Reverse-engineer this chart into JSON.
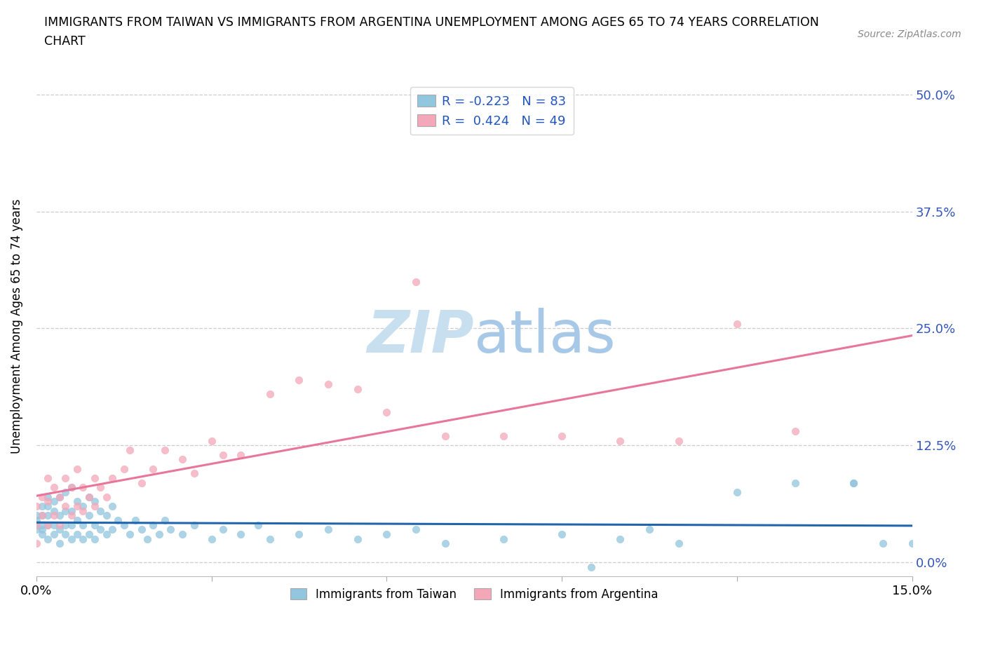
{
  "title": "IMMIGRANTS FROM TAIWAN VS IMMIGRANTS FROM ARGENTINA UNEMPLOYMENT AMONG AGES 65 TO 74 YEARS CORRELATION\nCHART",
  "source_text": "Source: ZipAtlas.com",
  "ylabel": "Unemployment Among Ages 65 to 74 years",
  "xlim": [
    0.0,
    0.15
  ],
  "ylim": [
    -0.015,
    0.52
  ],
  "ytick_vals": [
    0.0,
    0.125,
    0.25,
    0.375,
    0.5
  ],
  "ytick_labels": [
    "0.0%",
    "12.5%",
    "25.0%",
    "37.5%",
    "50.0%"
  ],
  "xtick_vals": [
    0.0,
    0.03,
    0.06,
    0.09,
    0.12,
    0.15
  ],
  "xtick_labels": [
    "0.0%",
    "",
    "",
    "",
    "",
    "15.0%"
  ],
  "taiwan_R": -0.223,
  "taiwan_N": 83,
  "argentina_R": 0.424,
  "argentina_N": 49,
  "taiwan_color": "#92C5DE",
  "argentina_color": "#F4A7B9",
  "taiwan_line_color": "#2166AC",
  "argentina_line_color": "#E8759A",
  "watermark_color": "#C8DFF0",
  "taiwan_x": [
    0.0,
    0.0,
    0.0,
    0.0,
    0.001,
    0.001,
    0.001,
    0.001,
    0.001,
    0.002,
    0.002,
    0.002,
    0.002,
    0.002,
    0.003,
    0.003,
    0.003,
    0.003,
    0.004,
    0.004,
    0.004,
    0.004,
    0.005,
    0.005,
    0.005,
    0.005,
    0.006,
    0.006,
    0.006,
    0.006,
    0.007,
    0.007,
    0.007,
    0.008,
    0.008,
    0.008,
    0.009,
    0.009,
    0.009,
    0.01,
    0.01,
    0.01,
    0.011,
    0.011,
    0.012,
    0.012,
    0.013,
    0.013,
    0.014,
    0.015,
    0.016,
    0.017,
    0.018,
    0.019,
    0.02,
    0.021,
    0.022,
    0.023,
    0.025,
    0.027,
    0.03,
    0.032,
    0.035,
    0.038,
    0.04,
    0.045,
    0.05,
    0.055,
    0.06,
    0.065,
    0.07,
    0.08,
    0.09,
    0.095,
    0.1,
    0.105,
    0.11,
    0.12,
    0.13,
    0.14,
    0.14,
    0.145,
    0.15
  ],
  "taiwan_y": [
    0.04,
    0.035,
    0.045,
    0.05,
    0.03,
    0.04,
    0.05,
    0.06,
    0.035,
    0.025,
    0.04,
    0.05,
    0.06,
    0.07,
    0.03,
    0.04,
    0.055,
    0.065,
    0.02,
    0.035,
    0.05,
    0.07,
    0.03,
    0.04,
    0.055,
    0.075,
    0.025,
    0.04,
    0.055,
    0.08,
    0.03,
    0.045,
    0.065,
    0.025,
    0.04,
    0.06,
    0.03,
    0.05,
    0.07,
    0.025,
    0.04,
    0.065,
    0.035,
    0.055,
    0.03,
    0.05,
    0.035,
    0.06,
    0.045,
    0.04,
    0.03,
    0.045,
    0.035,
    0.025,
    0.04,
    0.03,
    0.045,
    0.035,
    0.03,
    0.04,
    0.025,
    0.035,
    0.03,
    0.04,
    0.025,
    0.03,
    0.035,
    0.025,
    0.03,
    0.035,
    0.02,
    0.025,
    0.03,
    -0.005,
    0.025,
    0.035,
    0.02,
    0.075,
    0.085,
    0.085,
    0.085,
    0.02,
    0.02
  ],
  "argentina_x": [
    0.0,
    0.0,
    0.0,
    0.001,
    0.001,
    0.002,
    0.002,
    0.002,
    0.003,
    0.003,
    0.004,
    0.004,
    0.005,
    0.005,
    0.006,
    0.006,
    0.007,
    0.007,
    0.008,
    0.008,
    0.009,
    0.01,
    0.01,
    0.011,
    0.012,
    0.013,
    0.015,
    0.016,
    0.018,
    0.02,
    0.022,
    0.025,
    0.027,
    0.03,
    0.032,
    0.035,
    0.04,
    0.045,
    0.05,
    0.055,
    0.06,
    0.065,
    0.07,
    0.08,
    0.09,
    0.1,
    0.11,
    0.12,
    0.13
  ],
  "argentina_y": [
    0.02,
    0.04,
    0.06,
    0.05,
    0.07,
    0.04,
    0.065,
    0.09,
    0.05,
    0.08,
    0.04,
    0.07,
    0.06,
    0.09,
    0.05,
    0.08,
    0.06,
    0.1,
    0.055,
    0.08,
    0.07,
    0.06,
    0.09,
    0.08,
    0.07,
    0.09,
    0.1,
    0.12,
    0.085,
    0.1,
    0.12,
    0.11,
    0.095,
    0.13,
    0.115,
    0.115,
    0.18,
    0.195,
    0.19,
    0.185,
    0.16,
    0.3,
    0.135,
    0.135,
    0.135,
    0.13,
    0.13,
    0.255,
    0.14
  ]
}
